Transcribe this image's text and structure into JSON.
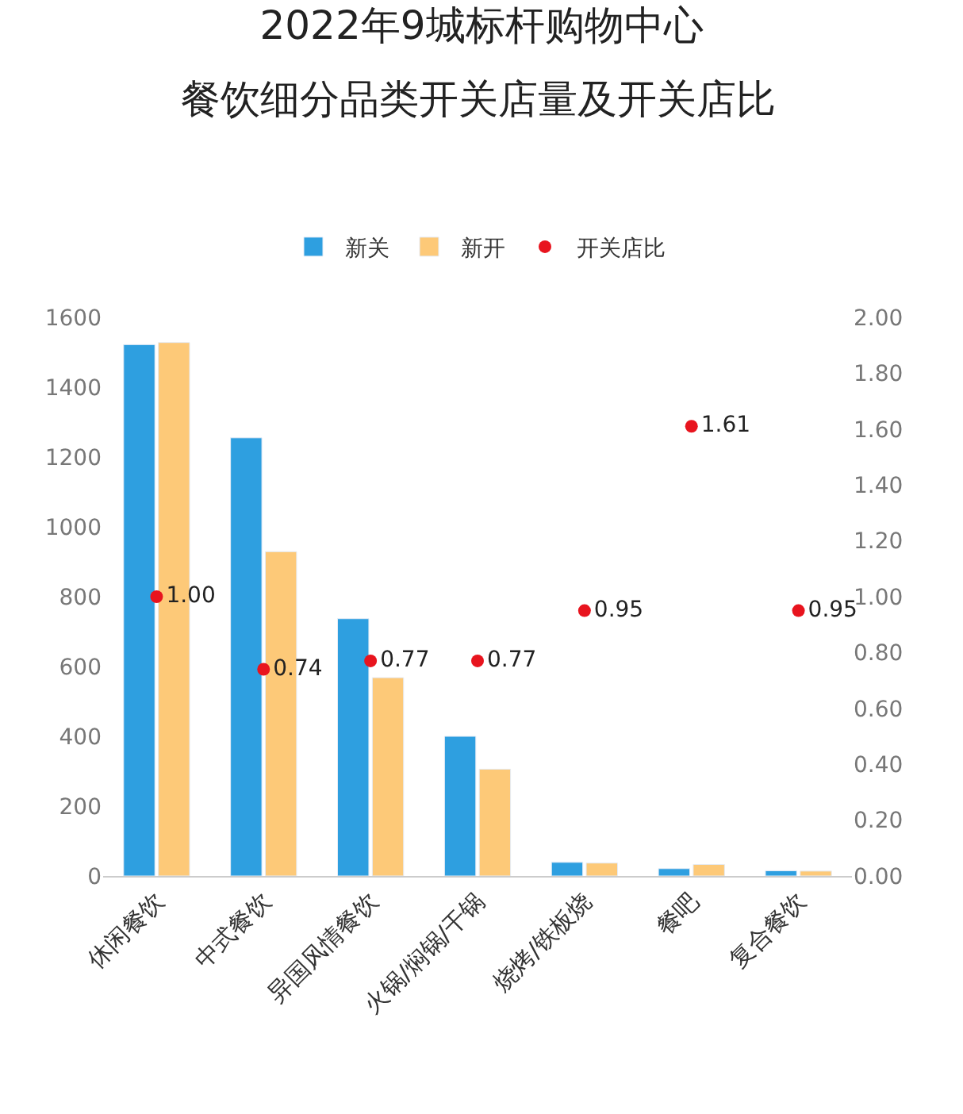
{
  "chart_data": {
    "type": "bar",
    "title": "2022年9城标杆购物中心",
    "subtitle": "餐饮细分品类开关店量及开关店比",
    "categories": [
      "休闲餐饮",
      "中式餐饮",
      "异国风情餐饮",
      "火锅/焖锅/干锅",
      "烧烤/铁板烧",
      "餐吧",
      "复合餐饮"
    ],
    "series": [
      {
        "name": "新关",
        "color": "#2e9fe0",
        "values": [
          1522,
          1255,
          737,
          400,
          39,
          21,
          15
        ]
      },
      {
        "name": "新开",
        "color": "#fdc978",
        "values": [
          1528,
          929,
          568,
          306,
          37,
          33,
          14
        ]
      },
      {
        "name": "开关店比",
        "type": "scatter",
        "axis": "y2",
        "color": "#e8141e",
        "marker": "circle",
        "values": [
          1.0,
          0.74,
          0.77,
          0.77,
          0.95,
          1.61,
          0.95
        ],
        "value_labels": [
          "1.00",
          "0.74",
          "0.77",
          "0.77",
          "0.95",
          "1.61",
          "0.95"
        ]
      }
    ],
    "ylim": [
      0,
      1600
    ],
    "yticks": [
      0,
      200,
      400,
      600,
      800,
      1000,
      1200,
      1400,
      1600
    ],
    "y2lim": [
      0,
      2
    ],
    "y2ticks": [
      {
        "value": 0,
        "label": "0.00"
      },
      {
        "value": 0.2,
        "label": "0.20"
      },
      {
        "value": 0.4,
        "label": "0.40"
      },
      {
        "value": 0.6,
        "label": "0.60"
      },
      {
        "value": 0.8,
        "label": "0.80"
      },
      {
        "value": 1,
        "label": "1.00"
      },
      {
        "value": 1.2,
        "label": "1.20"
      },
      {
        "value": 1.4,
        "label": "1.40"
      },
      {
        "value": 1.6,
        "label": "1.60"
      },
      {
        "value": 1.8,
        "label": "1.80"
      },
      {
        "value": 2,
        "label": "2.00"
      }
    ],
    "legend": "top"
  }
}
